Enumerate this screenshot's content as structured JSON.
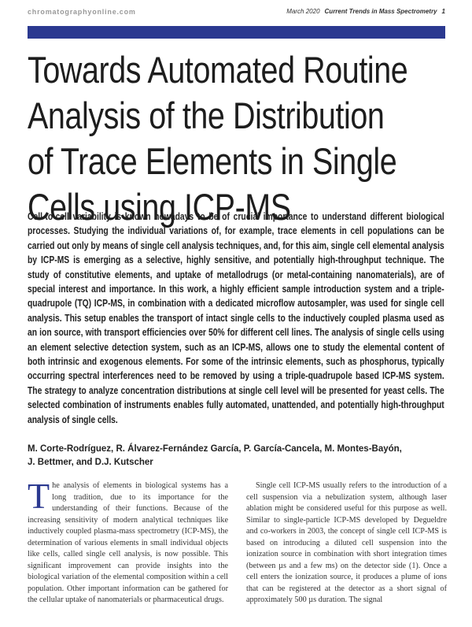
{
  "header": {
    "site": "chromatographyonline.com",
    "date": "March 2020",
    "publication": "Current Trends in Mass Spectrometry",
    "page": "1"
  },
  "title_lines": [
    "Towards Automated Routine",
    "Analysis of the Distribution",
    "of Trace Elements in Single",
    "Cells using ICP-MS"
  ],
  "abstract": "Cell-to-cell variability is known nowadays to be of crucial importance to understand different biological processes. Studying the individual variations of, for example, trace elements in cell populations can be carried out only by means of single cell analysis techniques, and, for this aim, single cell elemental analysis by ICP-MS is emerging as a selective, highly sensitive, and potentially high-throughput technique. The study of constitutive elements, and uptake of metallodrugs (or metal-containing nanomaterials), are of special interest and importance. In this work, a highly efficient sample introduction system and a triple-quadrupole (TQ) ICP-MS, in combination with a dedicated microflow autosampler, was used for single cell analysis. This setup enables the transport of intact single cells to the inductively coupled plasma used as an ion source, with transport efficiencies over 50% for different cell lines. The analysis of single cells using an element selective detection system, such as an ICP-MS, allows one to study the elemental content of both intrinsic and exogenous elements. For some of the intrinsic elements, such as phosphorus, typically occurring spectral interferences need to be removed by using a triple-quadrupole based ICP-MS system. The strategy to analyze concentration distributions at single cell level will be presented for yeast cells. The selected combination of instruments enables fully automated, unattended, and potentially high-throughput analysis of single cells.",
  "authors": "M. Corte-Rodríguez, R. Álvarez-Fernández García, P. García-Cancela, M. Montes-Bayón, J. Bettmer, and D.J. Kutscher",
  "body": {
    "drop_cap": "T",
    "column_1": "he analysis of elements in biological systems has a long tradition, due to its importance for the understanding of their functions. Because of the increasing sensitivity of modern analytical techniques like inductively coupled plasma-mass spectrometry (ICP-MS), the determination of various elements in small individual objects like cells, called single cell analysis, is now possible. This significant improvement can provide insights into the biological variation of the elemental composition within a cell population. Other important information can be gathered for the cellular uptake of nanomaterials or pharmaceutical drugs.",
    "column_2": "Single cell ICP-MS usually refers to the introduction of a cell suspension via a nebulization system, although laser ablation might be considered useful for this purpose as well. Similar to single-particle ICP-MS developed by Degueldre and co-workers in 2003, the concept of single cell ICP-MS is based on introducing a diluted cell suspension into the ionization source in combination with short integration times (between µs and a few ms) on the detector side (1). Once a cell enters the ionization source, it produces a plume of ions that can be registered at the detector as a short signal of approximately 500 µs duration. The signal"
  }
}
